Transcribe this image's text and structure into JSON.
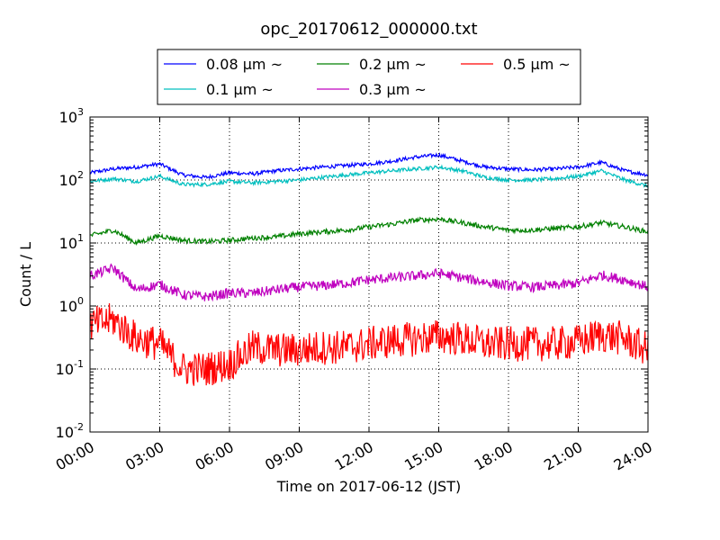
{
  "chart_data": {
    "type": "line",
    "title": "opc_20170612_000000.txt",
    "xlabel": "Time on 2017-06-12 (JST)",
    "ylabel": "Count / L",
    "yscale": "log",
    "ylim": [
      0.01,
      1000
    ],
    "xlim": [
      "00:00",
      "24:00"
    ],
    "xticks": [
      "00:00",
      "03:00",
      "06:00",
      "09:00",
      "12:00",
      "15:00",
      "18:00",
      "21:00",
      "24:00"
    ],
    "yticks": [
      {
        "base": "10",
        "exp": "-2"
      },
      {
        "base": "10",
        "exp": "-1"
      },
      {
        "base": "10",
        "exp": "0"
      },
      {
        "base": "10",
        "exp": "1"
      },
      {
        "base": "10",
        "exp": "2"
      },
      {
        "base": "10",
        "exp": "3"
      }
    ],
    "grid": true,
    "legend_location": "top-center",
    "x": [
      "00:00",
      "01:00",
      "02:00",
      "03:00",
      "04:00",
      "05:00",
      "06:00",
      "07:00",
      "08:00",
      "09:00",
      "10:00",
      "11:00",
      "12:00",
      "13:00",
      "14:00",
      "15:00",
      "16:00",
      "17:00",
      "18:00",
      "19:00",
      "20:00",
      "21:00",
      "22:00",
      "23:00",
      "24:00"
    ],
    "series": [
      {
        "name": "0.08 μm ~",
        "color": "#0000ff",
        "noise": 0.03,
        "values": [
          130,
          150,
          160,
          180,
          120,
          110,
          130,
          125,
          140,
          150,
          160,
          170,
          180,
          200,
          230,
          250,
          200,
          160,
          150,
          145,
          150,
          160,
          190,
          140,
          120
        ]
      },
      {
        "name": "0.1 μm ~",
        "color": "#00bfbf",
        "noise": 0.03,
        "values": [
          95,
          105,
          95,
          115,
          85,
          85,
          95,
          90,
          95,
          100,
          110,
          120,
          130,
          140,
          150,
          160,
          140,
          110,
          100,
          100,
          105,
          115,
          140,
          100,
          80
        ]
      },
      {
        "name": "0.2 μm ~",
        "color": "#008000",
        "noise": 0.04,
        "values": [
          13,
          16,
          10,
          13,
          11,
          10.5,
          11,
          12,
          12.5,
          14,
          15,
          16,
          18,
          20,
          23,
          24,
          21,
          18,
          16,
          16,
          17,
          18,
          21,
          18,
          15
        ]
      },
      {
        "name": "0.3 μm ~",
        "color": "#bf00bf",
        "noise": 0.08,
        "values": [
          3,
          4,
          1.8,
          2.2,
          1.5,
          1.4,
          1.6,
          1.6,
          1.8,
          2,
          2.1,
          2.3,
          2.6,
          2.8,
          3,
          3.3,
          2.8,
          2.4,
          2.1,
          2,
          2.1,
          2.3,
          3.1,
          2.6,
          2
        ]
      },
      {
        "name": "0.5 μm ~",
        "color": "#ff0000",
        "noise": 0.28,
        "values": [
          0.5,
          0.6,
          0.3,
          0.25,
          0.1,
          0.1,
          0.12,
          0.22,
          0.2,
          0.2,
          0.22,
          0.22,
          0.25,
          0.28,
          0.3,
          0.33,
          0.3,
          0.25,
          0.25,
          0.25,
          0.25,
          0.27,
          0.35,
          0.3,
          0.2
        ]
      }
    ]
  }
}
